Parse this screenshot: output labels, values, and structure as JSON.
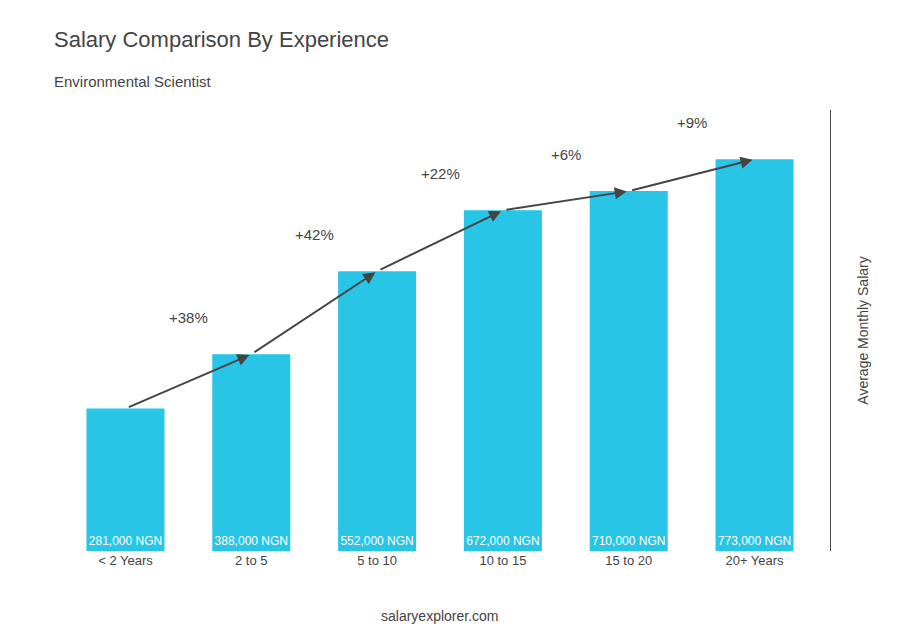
{
  "chart_data": {
    "type": "bar",
    "title": "Salary Comparison By Experience",
    "subtitle": "Environmental Scientist",
    "ylabel": "Average Monthly Salary",
    "categories": [
      "< 2 Years",
      "2 to 5",
      "5 to 10",
      "10 to 15",
      "15 to 20",
      "20+ Years"
    ],
    "values": [
      281000,
      388000,
      552000,
      672000,
      710000,
      773000
    ],
    "value_labels": [
      "281,000 NGN",
      "388,000 NGN",
      "552,000 NGN",
      "672,000 NGN",
      "710,000 NGN",
      "773,000 NGN"
    ],
    "data_labels": true,
    "annotations": [
      "+38%",
      "+42%",
      "+22%",
      "+6%",
      "+9%"
    ],
    "footer": "salaryexplorer.com",
    "color": "#29c5e6",
    "ylim": [
      0,
      870000
    ],
    "tick_labels": "x",
    "grid": false
  }
}
